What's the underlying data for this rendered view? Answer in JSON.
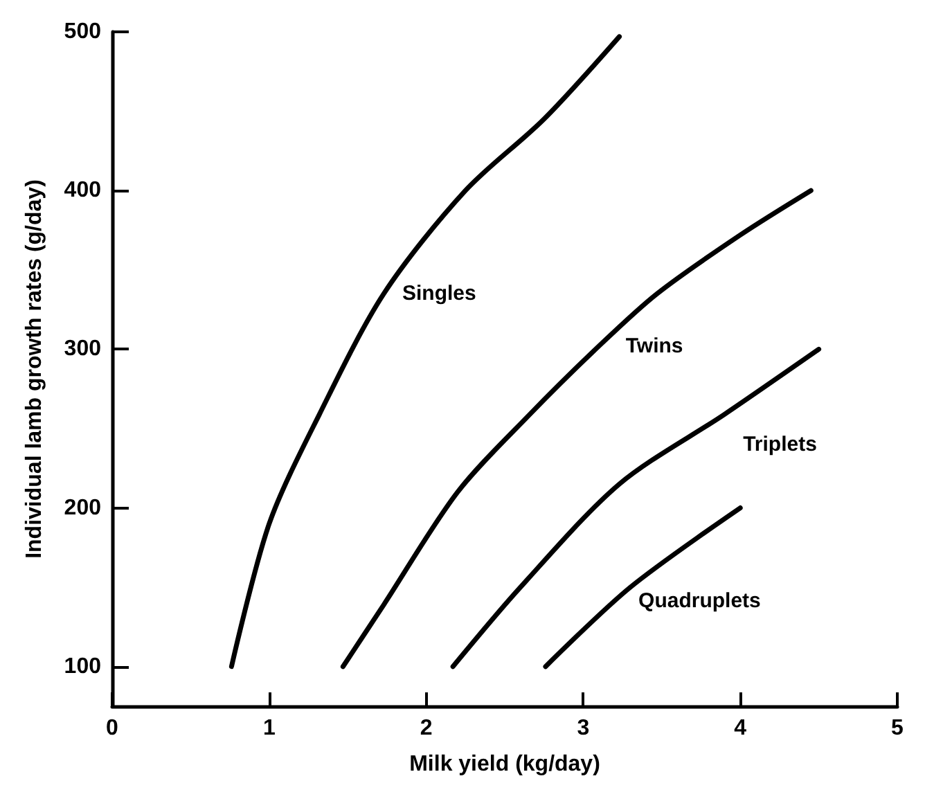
{
  "chart_data": {
    "type": "line",
    "xlabel": "Milk yield (kg/day)",
    "ylabel": "Individual lamb growth rates (g/day)",
    "xlim": [
      0,
      5
    ],
    "xticks": [
      0,
      1,
      2,
      3,
      4,
      5
    ],
    "ylim": [
      75,
      500
    ],
    "yticks": [
      100,
      200,
      300,
      400,
      500
    ],
    "grid": false,
    "legend": false,
    "marker": "none",
    "line_style": "solid",
    "series": [
      {
        "name": "Singles",
        "color": "#000000",
        "x": [
          0.76,
          1.0,
          1.32,
          1.73,
          2.25,
          2.75,
          3.23
        ],
        "values": [
          100,
          190,
          259,
          335,
          400,
          445,
          497
        ]
      },
      {
        "name": "Twins",
        "color": "#000000",
        "x": [
          1.47,
          1.73,
          2.2,
          2.66,
          3.1,
          3.47,
          4.0,
          4.45
        ],
        "values": [
          100,
          139,
          210,
          259,
          302,
          335,
          372,
          400
        ]
      },
      {
        "name": "Triplets",
        "color": "#000000",
        "x": [
          2.17,
          2.6,
          3.23,
          3.9,
          4.5
        ],
        "values": [
          100,
          150,
          215,
          259,
          300
        ]
      },
      {
        "name": "Quadruplets",
        "color": "#000000",
        "x": [
          2.76,
          3.3,
          4.0
        ],
        "values": [
          100,
          150,
          200
        ]
      }
    ]
  }
}
